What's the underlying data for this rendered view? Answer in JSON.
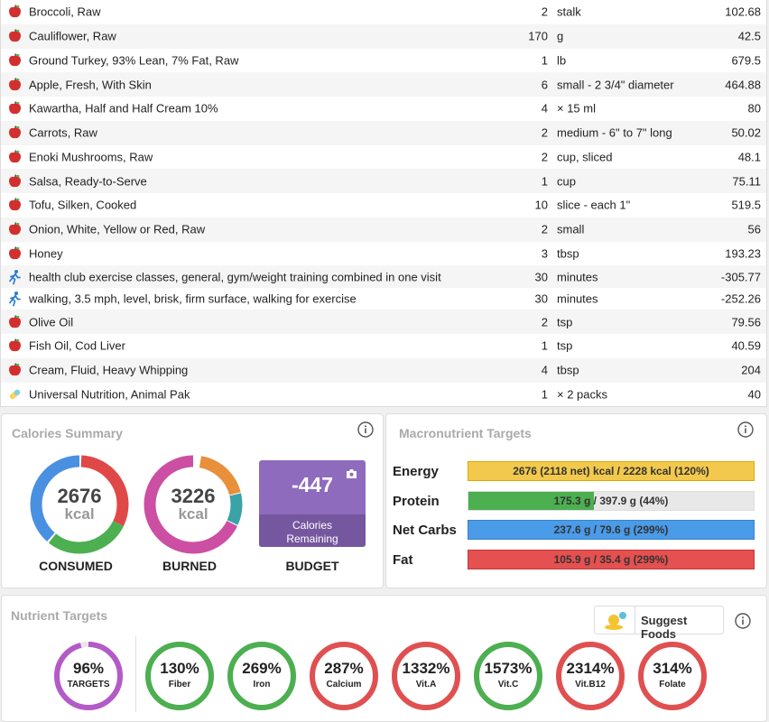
{
  "diary": [
    {
      "icon": "apple-icon",
      "name": "Broccoli, Raw",
      "qty": "2",
      "unit": "stalk",
      "cal": "102.68"
    },
    {
      "icon": "apple-icon",
      "name": "Cauliflower, Raw",
      "qty": "170",
      "unit": "g",
      "cal": "42.5"
    },
    {
      "icon": "apple-icon",
      "name": "Ground Turkey, 93% Lean, 7% Fat, Raw",
      "qty": "1",
      "unit": "lb",
      "cal": "679.5"
    },
    {
      "icon": "apple-icon",
      "name": "Apple, Fresh, With Skin",
      "qty": "6",
      "unit": "small - 2 3/4\" diameter",
      "cal": "464.88"
    },
    {
      "icon": "apple-icon",
      "name": "Kawartha, Half and Half Cream 10%",
      "qty": "4",
      "unit": "× 15 ml",
      "cal": "80"
    },
    {
      "icon": "apple-icon",
      "name": "Carrots, Raw",
      "qty": "2",
      "unit": "medium - 6\" to 7\" long",
      "cal": "50.02"
    },
    {
      "icon": "apple-icon",
      "name": "Enoki Mushrooms, Raw",
      "qty": "2",
      "unit": "cup, sliced",
      "cal": "48.1"
    },
    {
      "icon": "apple-icon",
      "name": "Salsa, Ready-to-Serve",
      "qty": "1",
      "unit": "cup",
      "cal": "75.11"
    },
    {
      "icon": "apple-icon",
      "name": "Tofu, Silken, Cooked",
      "qty": "10",
      "unit": "slice - each 1\"",
      "cal": "519.5"
    },
    {
      "icon": "apple-icon",
      "name": "Onion, White, Yellow or Red, Raw",
      "qty": "2",
      "unit": "small",
      "cal": "56"
    },
    {
      "icon": "apple-icon",
      "name": "Honey",
      "qty": "3",
      "unit": "tbsp",
      "cal": "193.23"
    },
    {
      "icon": "runner-icon",
      "name": "health club exercise classes, general, gym/weight training combined in one visit",
      "qty": "30",
      "unit": "minutes",
      "cal": "-305.77"
    },
    {
      "icon": "runner-icon",
      "name": "walking, 3.5 mph, level, brisk, firm surface, walking for exercise",
      "qty": "30",
      "unit": "minutes",
      "cal": "-252.26"
    },
    {
      "icon": "apple-icon",
      "name": "Olive Oil",
      "qty": "2",
      "unit": "tsp",
      "cal": "79.56"
    },
    {
      "icon": "apple-icon",
      "name": "Fish Oil, Cod Liver",
      "qty": "1",
      "unit": "tsp",
      "cal": "40.59"
    },
    {
      "icon": "apple-icon",
      "name": "Cream, Fluid, Heavy Whipping",
      "qty": "4",
      "unit": "tbsp",
      "cal": "204"
    },
    {
      "icon": "pill-icon",
      "name": "Universal Nutrition, Animal Pak",
      "qty": "1",
      "unit": "× 2 packs",
      "cal": "40"
    }
  ],
  "calories_summary": {
    "title": "Calories Summary",
    "consumed": {
      "value": "2676",
      "unit": "kcal",
      "caption": "CONSUMED"
    },
    "burned": {
      "value": "3226",
      "unit": "kcal",
      "caption": "BURNED"
    },
    "budget": {
      "value": "-447",
      "label_line1": "Calories",
      "label_line2": "Remaining",
      "caption": "BUDGET"
    },
    "colors": {
      "protein": "#4caf50",
      "carbs": "#4a90e2",
      "fat": "#e04848",
      "burn_magenta": "#cc4fa3",
      "burn_orange": "#e8903a",
      "burn_teal": "#3aa3a8",
      "budget": "#8e6bbd"
    }
  },
  "macros": {
    "title": "Macronutrient Targets",
    "rows": [
      {
        "label": "Energy",
        "text": "2676 (2118 net) kcal / 2228 kcal (120%)",
        "fill": 1.0,
        "color": "#f2c94c",
        "border": "#e0a800"
      },
      {
        "label": "Protein",
        "text": "175.3 g / 397.9 g (44%)",
        "fill": 0.44,
        "color": "#4caf50",
        "border": "#ddd"
      },
      {
        "label": "Net Carbs",
        "text": "237.6 g / 79.6 g (299%)",
        "fill": 1.0,
        "color": "#4a9be8",
        "border": "#3a80cc"
      },
      {
        "label": "Fat",
        "text": "105.9 g / 35.4 g (299%)",
        "fill": 1.0,
        "color": "#e55050",
        "border": "#c03a3a"
      }
    ]
  },
  "nutrients": {
    "title": "Nutrient Targets",
    "suggest_label": "Suggest Foods",
    "items": [
      {
        "pct": "96%",
        "label": "TARGETS",
        "color": "#b45ac8",
        "fill": 0.96
      },
      {
        "pct": "130%",
        "label": "Fiber",
        "color": "#4caf50",
        "fill": 1
      },
      {
        "pct": "269%",
        "label": "Iron",
        "color": "#4caf50",
        "fill": 1
      },
      {
        "pct": "287%",
        "label": "Calcium",
        "color": "#e05050",
        "fill": 1
      },
      {
        "pct": "1332%",
        "label": "Vit.A",
        "color": "#e05050",
        "fill": 1
      },
      {
        "pct": "1573%",
        "label": "Vit.C",
        "color": "#4caf50",
        "fill": 1
      },
      {
        "pct": "2314%",
        "label": "Vit.B12",
        "color": "#e05050",
        "fill": 1
      },
      {
        "pct": "314%",
        "label": "Folate",
        "color": "#e05050",
        "fill": 1
      }
    ]
  }
}
